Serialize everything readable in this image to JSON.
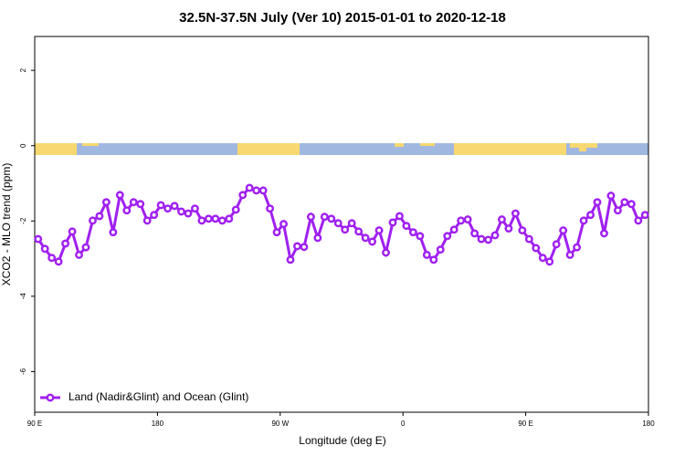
{
  "chart_data": {
    "type": "line",
    "title": "32.5N-37.5N July (Ver 10)   2015-01-01 to 2020-12-18",
    "x_label": "Longitude (deg E)",
    "y_label": "XCO2 - MLO trend (ppm)",
    "x": [
      92.5,
      97.5,
      102.5,
      107.5,
      112.5,
      117.5,
      122.5,
      127.5,
      132.5,
      137.5,
      142.5,
      147.5,
      152.5,
      157.5,
      162.5,
      167.5,
      172.5,
      177.5,
      182.5,
      187.5,
      192.5,
      197.5,
      202.5,
      207.5,
      212.5,
      217.5,
      222.5,
      227.5,
      232.5,
      237.5,
      242.5,
      247.5,
      252.5,
      257.5,
      262.5,
      267.5,
      272.5,
      277.5,
      282.5,
      287.5,
      292.5,
      297.5,
      302.5,
      307.5,
      312.5,
      317.5,
      322.5,
      327.5,
      332.5,
      337.5,
      342.5,
      347.5,
      352.5,
      357.5,
      362.5,
      367.5,
      372.5,
      377.5,
      382.5,
      387.5,
      392.5,
      397.5,
      402.5,
      407.5,
      412.5,
      417.5,
      422.5,
      427.5,
      432.5,
      437.5,
      442.5,
      447.5,
      452.5,
      457.5,
      462.5,
      467.5,
      472.5,
      477.5,
      482.5,
      487.5,
      492.5,
      497.5,
      502.5,
      507.5,
      512.5,
      517.5,
      522.5,
      527.5,
      532.5,
      537.5
    ],
    "series": [
      {
        "name": "Land (Nadir&Glint) and Ocean (Glint)",
        "color": "#a020f0",
        "values": [
          -2.48,
          -2.74,
          -2.98,
          -3.08,
          -2.6,
          -2.28,
          -2.9,
          -2.7,
          -1.99,
          -1.87,
          -1.5,
          -2.3,
          -1.31,
          -1.72,
          -1.5,
          -1.55,
          -1.99,
          -1.84,
          -1.58,
          -1.67,
          -1.6,
          -1.75,
          -1.8,
          -1.67,
          -1.99,
          -1.94,
          -1.94,
          -1.99,
          -1.94,
          -1.7,
          -1.31,
          -1.12,
          -1.19,
          -1.19,
          -1.67,
          -2.3,
          -2.08,
          -3.03,
          -2.67,
          -2.69,
          -1.89,
          -2.45,
          -1.89,
          -1.94,
          -2.06,
          -2.23,
          -2.06,
          -2.28,
          -2.45,
          -2.55,
          -2.25,
          -2.84,
          -2.04,
          -1.87,
          -2.13,
          -2.3,
          -2.4,
          -2.9,
          -3.03,
          -2.76,
          -2.4,
          -2.23,
          -1.99,
          -1.96,
          -2.33,
          -2.48,
          -2.5,
          -2.38,
          -1.96,
          -2.2,
          -1.8,
          -2.25,
          -2.48,
          -2.72,
          -2.98,
          -3.08,
          -2.62,
          -2.25,
          -2.9,
          -2.7,
          -1.99,
          -1.84,
          -1.5,
          -2.33,
          -1.33,
          -1.72,
          -1.5,
          -1.55,
          -1.99,
          -1.84
        ]
      }
    ],
    "xlim": [
      90,
      540
    ],
    "xticks": [
      {
        "value": 90,
        "label": "90 E"
      },
      180,
      {
        "value": 270,
        "label": "90 W"
      },
      {
        "value": 360,
        "label": "0"
      },
      {
        "value": 450,
        "label": "90 E"
      },
      {
        "value": 540,
        "label": "180"
      }
    ],
    "ylim": [
      -7.08,
      2.9
    ],
    "yticks": [
      -6,
      -4,
      -2,
      0,
      2
    ],
    "legend": "bottom-left"
  }
}
